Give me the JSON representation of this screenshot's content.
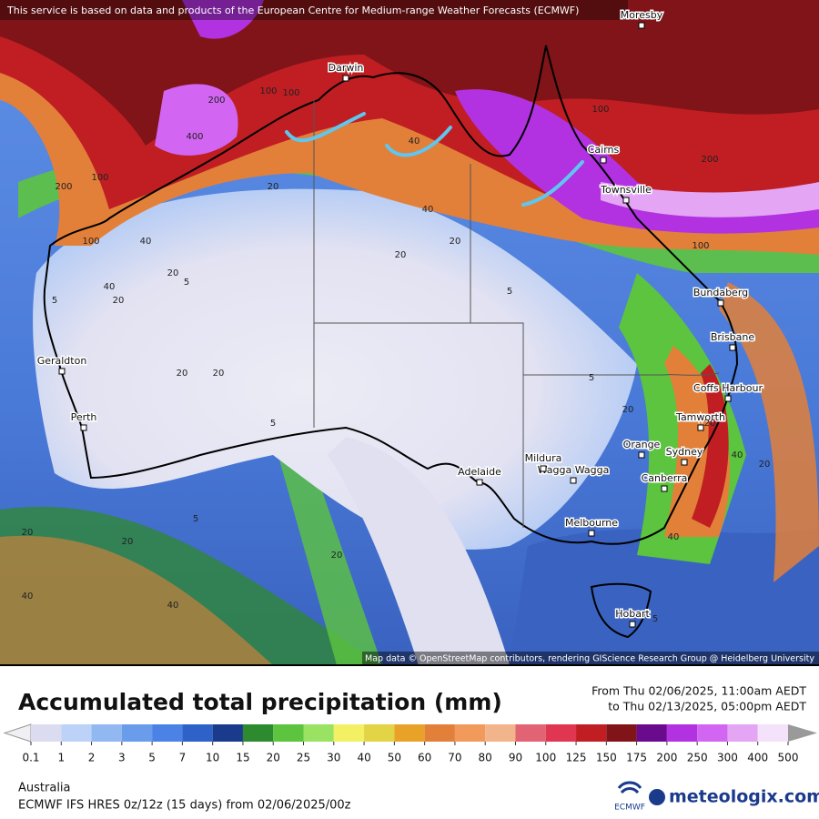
{
  "map": {
    "attribution_top": "This service is based on data and products of the European Centre for Medium-range Weather Forecasts (ECMWF)",
    "attribution_bottom": "Map data © OpenStreetMap contributors, rendering GIScience Research Group @ Heidelberg University",
    "cities": [
      "Darwin",
      "Cairns",
      "Townsville",
      "Bundaberg",
      "Brisbane",
      "Coffs Harbour",
      "Tamworth",
      "Orange",
      "Sydney",
      "Canberra",
      "Wagga Wagga",
      "Mildura",
      "Adelaide",
      "Melbourne",
      "Hobart",
      "Geraldton",
      "Perth",
      "Moresby"
    ],
    "contour_labels": [
      100,
      200,
      400,
      100,
      40,
      20,
      100,
      200,
      100,
      40,
      20,
      5,
      5,
      20,
      40,
      20,
      5,
      20,
      20,
      5,
      20,
      40,
      20,
      5,
      40,
      20,
      20,
      40,
      5,
      20,
      20,
      40,
      100,
      200,
      100,
      40,
      20,
      5
    ]
  },
  "legend": {
    "title": "Accumulated total precipitation (mm)",
    "period": [
      "From Thu 02/06/2025, 11:00am AEDT",
      "to Thu 02/13/2025, 05:00pm AEDT"
    ],
    "ticks": [
      0.1,
      1,
      2,
      3,
      5,
      7,
      10,
      15,
      20,
      25,
      30,
      40,
      50,
      60,
      70,
      80,
      90,
      100,
      125,
      150,
      175,
      200,
      250,
      300,
      400,
      500
    ],
    "colors": [
      "#dcdcf0",
      "#bcd2f6",
      "#92b8f2",
      "#6a9cec",
      "#4a82e6",
      "#2e62c8",
      "#1a3a8c",
      "#2e8a2e",
      "#5cc43e",
      "#9ae262",
      "#f4f064",
      "#e2d444",
      "#e8a228",
      "#e2803a",
      "#f29a5c",
      "#f2b48a",
      "#e26474",
      "#e03652",
      "#c01e22",
      "#801418",
      "#6a0a8c",
      "#b232e2",
      "#d266f2",
      "#e4a6f4",
      "#f4e2fa"
    ],
    "under_color": "#f0f0f4",
    "over_color": "#9a9a9a",
    "last_color": "#d2d2d2"
  },
  "footer": {
    "region": "Australia",
    "model": "ECMWF IFS HRES 0z/12z (15 days) from 02/06/2025/00z",
    "ecmwf_logo": "ECMWF",
    "brand": "meteologix.com"
  }
}
